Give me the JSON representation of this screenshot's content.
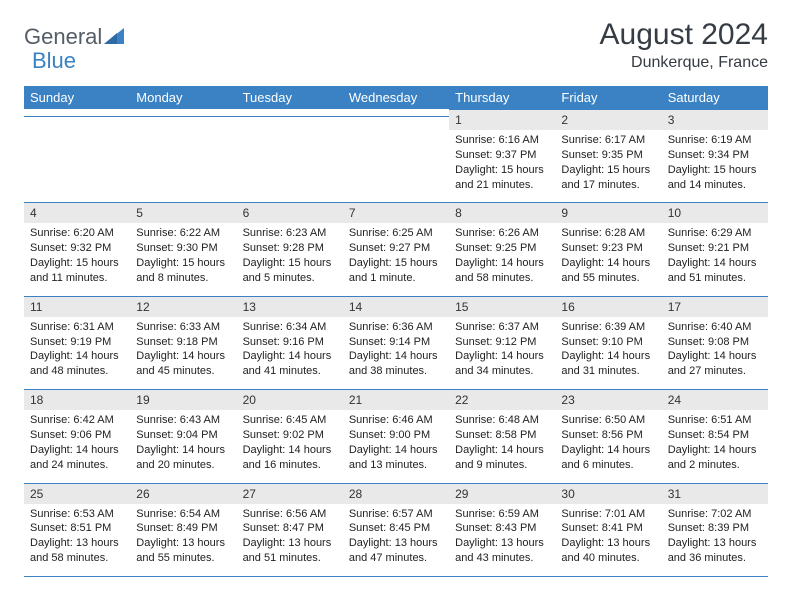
{
  "logo": {
    "text_a": "General",
    "text_b": "Blue"
  },
  "title": "August 2024",
  "location": "Dunkerque, France",
  "colors": {
    "header_bg": "#3b82c4",
    "header_text": "#ffffff",
    "daynum_bg": "#e9e9e9",
    "border": "#3b82c4",
    "body_text": "#333333",
    "logo_gray": "#555d66"
  },
  "day_headers": [
    "Sunday",
    "Monday",
    "Tuesday",
    "Wednesday",
    "Thursday",
    "Friday",
    "Saturday"
  ],
  "weeks": [
    [
      {
        "n": "",
        "sunrise": "",
        "sunset": "",
        "daylight": ""
      },
      {
        "n": "",
        "sunrise": "",
        "sunset": "",
        "daylight": ""
      },
      {
        "n": "",
        "sunrise": "",
        "sunset": "",
        "daylight": ""
      },
      {
        "n": "",
        "sunrise": "",
        "sunset": "",
        "daylight": ""
      },
      {
        "n": "1",
        "sunrise": "Sunrise: 6:16 AM",
        "sunset": "Sunset: 9:37 PM",
        "daylight": "Daylight: 15 hours and 21 minutes."
      },
      {
        "n": "2",
        "sunrise": "Sunrise: 6:17 AM",
        "sunset": "Sunset: 9:35 PM",
        "daylight": "Daylight: 15 hours and 17 minutes."
      },
      {
        "n": "3",
        "sunrise": "Sunrise: 6:19 AM",
        "sunset": "Sunset: 9:34 PM",
        "daylight": "Daylight: 15 hours and 14 minutes."
      }
    ],
    [
      {
        "n": "4",
        "sunrise": "Sunrise: 6:20 AM",
        "sunset": "Sunset: 9:32 PM",
        "daylight": "Daylight: 15 hours and 11 minutes."
      },
      {
        "n": "5",
        "sunrise": "Sunrise: 6:22 AM",
        "sunset": "Sunset: 9:30 PM",
        "daylight": "Daylight: 15 hours and 8 minutes."
      },
      {
        "n": "6",
        "sunrise": "Sunrise: 6:23 AM",
        "sunset": "Sunset: 9:28 PM",
        "daylight": "Daylight: 15 hours and 5 minutes."
      },
      {
        "n": "7",
        "sunrise": "Sunrise: 6:25 AM",
        "sunset": "Sunset: 9:27 PM",
        "daylight": "Daylight: 15 hours and 1 minute."
      },
      {
        "n": "8",
        "sunrise": "Sunrise: 6:26 AM",
        "sunset": "Sunset: 9:25 PM",
        "daylight": "Daylight: 14 hours and 58 minutes."
      },
      {
        "n": "9",
        "sunrise": "Sunrise: 6:28 AM",
        "sunset": "Sunset: 9:23 PM",
        "daylight": "Daylight: 14 hours and 55 minutes."
      },
      {
        "n": "10",
        "sunrise": "Sunrise: 6:29 AM",
        "sunset": "Sunset: 9:21 PM",
        "daylight": "Daylight: 14 hours and 51 minutes."
      }
    ],
    [
      {
        "n": "11",
        "sunrise": "Sunrise: 6:31 AM",
        "sunset": "Sunset: 9:19 PM",
        "daylight": "Daylight: 14 hours and 48 minutes."
      },
      {
        "n": "12",
        "sunrise": "Sunrise: 6:33 AM",
        "sunset": "Sunset: 9:18 PM",
        "daylight": "Daylight: 14 hours and 45 minutes."
      },
      {
        "n": "13",
        "sunrise": "Sunrise: 6:34 AM",
        "sunset": "Sunset: 9:16 PM",
        "daylight": "Daylight: 14 hours and 41 minutes."
      },
      {
        "n": "14",
        "sunrise": "Sunrise: 6:36 AM",
        "sunset": "Sunset: 9:14 PM",
        "daylight": "Daylight: 14 hours and 38 minutes."
      },
      {
        "n": "15",
        "sunrise": "Sunrise: 6:37 AM",
        "sunset": "Sunset: 9:12 PM",
        "daylight": "Daylight: 14 hours and 34 minutes."
      },
      {
        "n": "16",
        "sunrise": "Sunrise: 6:39 AM",
        "sunset": "Sunset: 9:10 PM",
        "daylight": "Daylight: 14 hours and 31 minutes."
      },
      {
        "n": "17",
        "sunrise": "Sunrise: 6:40 AM",
        "sunset": "Sunset: 9:08 PM",
        "daylight": "Daylight: 14 hours and 27 minutes."
      }
    ],
    [
      {
        "n": "18",
        "sunrise": "Sunrise: 6:42 AM",
        "sunset": "Sunset: 9:06 PM",
        "daylight": "Daylight: 14 hours and 24 minutes."
      },
      {
        "n": "19",
        "sunrise": "Sunrise: 6:43 AM",
        "sunset": "Sunset: 9:04 PM",
        "daylight": "Daylight: 14 hours and 20 minutes."
      },
      {
        "n": "20",
        "sunrise": "Sunrise: 6:45 AM",
        "sunset": "Sunset: 9:02 PM",
        "daylight": "Daylight: 14 hours and 16 minutes."
      },
      {
        "n": "21",
        "sunrise": "Sunrise: 6:46 AM",
        "sunset": "Sunset: 9:00 PM",
        "daylight": "Daylight: 14 hours and 13 minutes."
      },
      {
        "n": "22",
        "sunrise": "Sunrise: 6:48 AM",
        "sunset": "Sunset: 8:58 PM",
        "daylight": "Daylight: 14 hours and 9 minutes."
      },
      {
        "n": "23",
        "sunrise": "Sunrise: 6:50 AM",
        "sunset": "Sunset: 8:56 PM",
        "daylight": "Daylight: 14 hours and 6 minutes."
      },
      {
        "n": "24",
        "sunrise": "Sunrise: 6:51 AM",
        "sunset": "Sunset: 8:54 PM",
        "daylight": "Daylight: 14 hours and 2 minutes."
      }
    ],
    [
      {
        "n": "25",
        "sunrise": "Sunrise: 6:53 AM",
        "sunset": "Sunset: 8:51 PM",
        "daylight": "Daylight: 13 hours and 58 minutes."
      },
      {
        "n": "26",
        "sunrise": "Sunrise: 6:54 AM",
        "sunset": "Sunset: 8:49 PM",
        "daylight": "Daylight: 13 hours and 55 minutes."
      },
      {
        "n": "27",
        "sunrise": "Sunrise: 6:56 AM",
        "sunset": "Sunset: 8:47 PM",
        "daylight": "Daylight: 13 hours and 51 minutes."
      },
      {
        "n": "28",
        "sunrise": "Sunrise: 6:57 AM",
        "sunset": "Sunset: 8:45 PM",
        "daylight": "Daylight: 13 hours and 47 minutes."
      },
      {
        "n": "29",
        "sunrise": "Sunrise: 6:59 AM",
        "sunset": "Sunset: 8:43 PM",
        "daylight": "Daylight: 13 hours and 43 minutes."
      },
      {
        "n": "30",
        "sunrise": "Sunrise: 7:01 AM",
        "sunset": "Sunset: 8:41 PM",
        "daylight": "Daylight: 13 hours and 40 minutes."
      },
      {
        "n": "31",
        "sunrise": "Sunrise: 7:02 AM",
        "sunset": "Sunset: 8:39 PM",
        "daylight": "Daylight: 13 hours and 36 minutes."
      }
    ]
  ]
}
